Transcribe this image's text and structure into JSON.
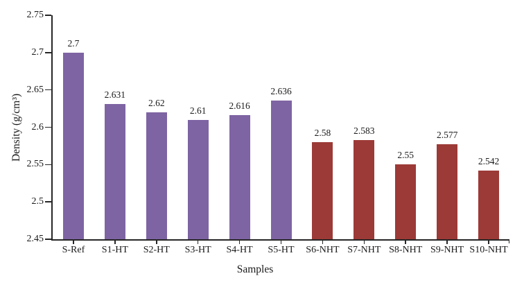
{
  "chart_data": {
    "type": "bar",
    "title": "",
    "xlabel": "Samples",
    "ylabel": "Density (g/cm³)",
    "categories": [
      "S-Ref",
      "S1-HT",
      "S2-HT",
      "S3-HT",
      "S4-HT",
      "S5-HT",
      "S6-NHT",
      "S7-NHT",
      "S8-NHT",
      "S9-NHT",
      "S10-NHT"
    ],
    "values": [
      2.7,
      2.631,
      2.62,
      2.61,
      2.616,
      2.636,
      2.58,
      2.583,
      2.55,
      2.577,
      2.542
    ],
    "value_labels": [
      "2.7",
      "2.631",
      "2.62",
      "2.61",
      "2.616",
      "2.636",
      "2.58",
      "2.583",
      "2.55",
      "2.577",
      "2.542"
    ],
    "point_color_index": [
      0,
      0,
      0,
      0,
      0,
      0,
      1,
      1,
      1,
      1,
      1
    ],
    "palette": [
      "#7E64A3",
      "#9C3A37"
    ],
    "ylim": [
      2.45,
      2.75
    ],
    "ytick_values": [
      2.45,
      2.5,
      2.55,
      2.6,
      2.65,
      2.7,
      2.75
    ],
    "ytick_labels": [
      "2.45",
      "2.5",
      "2.55",
      "2.6",
      "2.65",
      "2.7",
      "2.75"
    ],
    "grid": "off",
    "legend": "none",
    "axis_color": "#262626",
    "text_color": "#1a1a1a"
  }
}
